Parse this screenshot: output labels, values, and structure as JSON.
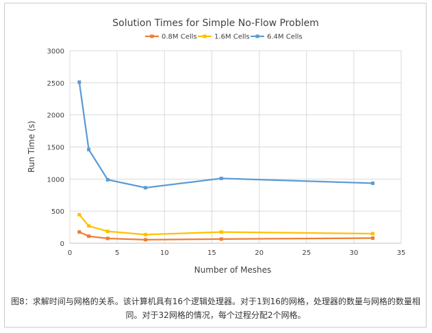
{
  "caption": {
    "text": "图8：求解时间与网格的关系。该计算机具有16个逻辑处理器。对于1到16的网格，处理器的数量与网格的数量相同。对于32网格的情况，每个过程分配2个网格。"
  },
  "chart_data": {
    "type": "line",
    "title": "Solution Times for Simple No-Flow Problem",
    "xlabel": "Number of Meshes",
    "ylabel": "Run Time (s)",
    "xlim": [
      0,
      35
    ],
    "ylim": [
      0,
      3000
    ],
    "xticks": [
      0,
      5,
      10,
      15,
      20,
      25,
      30,
      35
    ],
    "yticks": [
      0,
      500,
      1000,
      1500,
      2000,
      2500,
      3000
    ],
    "grid": true,
    "legend_position": "top",
    "x": [
      1,
      2,
      4,
      8,
      16,
      32
    ],
    "series": [
      {
        "name": "0.8M Cells",
        "color": "#ED7D31",
        "values": [
          175,
          110,
          75,
          55,
          65,
          80
        ]
      },
      {
        "name": "1.6M Cells",
        "color": "#FFC000",
        "values": [
          445,
          270,
          185,
          135,
          175,
          150
        ]
      },
      {
        "name": "6.4M Cells",
        "color": "#5B9BD5",
        "values": [
          2510,
          1460,
          990,
          865,
          1010,
          935
        ]
      }
    ]
  }
}
